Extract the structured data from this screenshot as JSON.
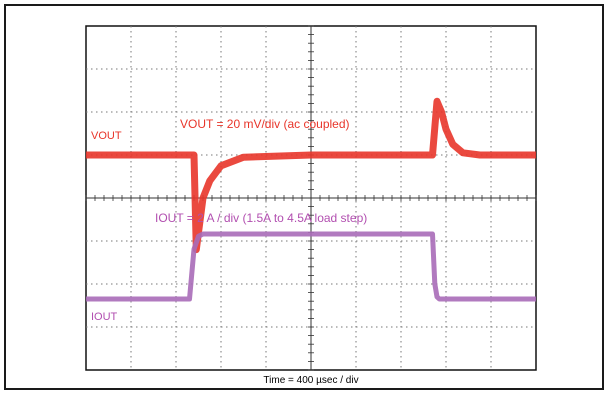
{
  "chart_data": {
    "type": "line",
    "title": "",
    "xlabel": "Time = 400 µsec / div",
    "ylabel": "",
    "x_unit": "µs",
    "grid": true,
    "grid_style": "dotted, 10 x 8 divisions",
    "xlim": [
      0,
      4000
    ],
    "ylim_divisions": [
      -4,
      4
    ],
    "series": [
      {
        "name": "VOUT",
        "color": "#e8352a",
        "scale_label": "VOUT = 20 mV/div (ac coupled)",
        "unit": "mV",
        "x": [
          0,
          920,
          960,
          980,
          1000,
          1040,
          1100,
          1200,
          1400,
          2000,
          2800,
          3080,
          3120,
          3160,
          3200,
          3260,
          3350,
          3500,
          4000
        ],
        "y": [
          0,
          0,
          0,
          -44,
          -36,
          -20,
          -12,
          -5,
          -1,
          0,
          0,
          0,
          25,
          20,
          12,
          5,
          1,
          0,
          0
        ]
      },
      {
        "name": "IOUT",
        "color": "#a86bb8",
        "scale_label": "IOUT = 2 A / div (1.5A to 4.5A load step)",
        "unit": "A",
        "x": [
          0,
          920,
          960,
          1000,
          1040,
          1080,
          3080,
          3100,
          3120,
          3140,
          4000
        ],
        "y": [
          1.5,
          1.5,
          3.8,
          4.4,
          4.5,
          4.5,
          4.5,
          2.2,
          1.6,
          1.5,
          1.5
        ]
      }
    ]
  }
}
